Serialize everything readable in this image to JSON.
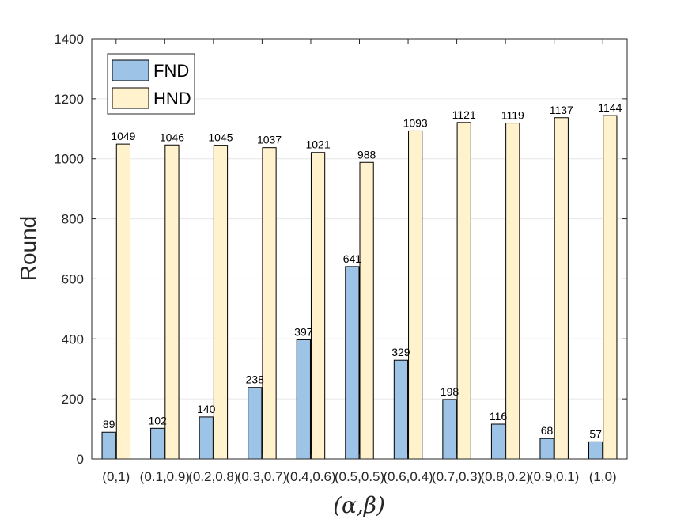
{
  "chart_data": {
    "type": "bar",
    "categories": [
      "(0,1)",
      "(0.1,0.9)",
      "(0.2,0.8)",
      "(0.3,0.7)",
      "(0.4,0.6)",
      "(0.5,0.5)",
      "(0.6,0.4)",
      "(0.7,0.3)",
      "(0.8,0.2)",
      "(0.9,0.1)",
      "(1,0)"
    ],
    "series": [
      {
        "name": "FND",
        "color": "#9dc3e6",
        "values": [
          89,
          102,
          140,
          238,
          397,
          641,
          329,
          198,
          116,
          68,
          57
        ]
      },
      {
        "name": "HND",
        "color": "#fff2cc",
        "values": [
          1049,
          1046,
          1045,
          1037,
          1021,
          988,
          1093,
          1121,
          1119,
          1137,
          1144
        ]
      }
    ],
    "xlabel": "(α,β)",
    "ylabel": "Round",
    "ylim": [
      0,
      1400
    ],
    "yticks": [
      0,
      200,
      400,
      600,
      800,
      1000,
      1200,
      1400
    ],
    "grid": "horizontal",
    "legend_position": "top-left",
    "data_labels": true
  }
}
